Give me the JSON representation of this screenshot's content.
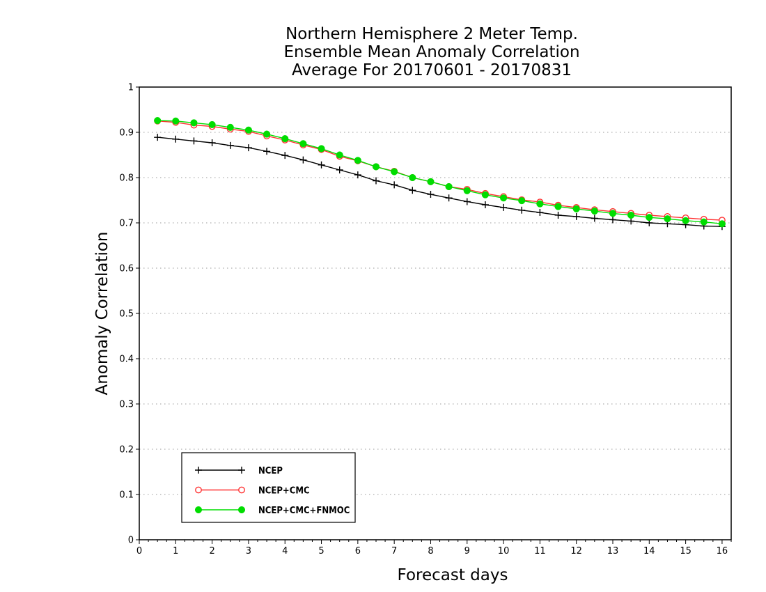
{
  "chart_data": {
    "type": "line",
    "title": [
      "Northern Hemisphere 2 Meter Temp.",
      "Ensemble Mean Anomaly Correlation",
      "Average For 20170601 - 20170831"
    ],
    "xlabel": "Forecast days",
    "ylabel": "Anomaly Correlation",
    "xlim": [
      0,
      16.25
    ],
    "ylim": [
      0,
      1
    ],
    "xticks": [
      "0",
      "1",
      "2",
      "3",
      "4",
      "5",
      "6",
      "7",
      "8",
      "9",
      "10",
      "11",
      "12",
      "13",
      "14",
      "15",
      "16"
    ],
    "yticks": [
      "0",
      "0.1",
      "0.2",
      "0.3",
      "0.4",
      "0.5",
      "0.6",
      "0.7",
      "0.8",
      "0.9",
      "1"
    ],
    "grid": "horizontal dotted",
    "legend_position": "bottom-left",
    "x": [
      0.5,
      1,
      1.5,
      2,
      2.5,
      3,
      3.5,
      4,
      4.5,
      5,
      5.5,
      6,
      6.5,
      7,
      7.5,
      8,
      8.5,
      9,
      9.5,
      10,
      10.5,
      11,
      11.5,
      12,
      12.5,
      13,
      13.5,
      14,
      14.5,
      15,
      15.5,
      16
    ],
    "series": [
      {
        "name": "NCEP",
        "color": "#000000",
        "marker": "plus",
        "values": [
          0.889,
          0.885,
          0.881,
          0.877,
          0.871,
          0.866,
          0.858,
          0.849,
          0.839,
          0.828,
          0.817,
          0.806,
          0.793,
          0.784,
          0.772,
          0.763,
          0.755,
          0.747,
          0.74,
          0.734,
          0.728,
          0.723,
          0.717,
          0.714,
          0.71,
          0.707,
          0.704,
          0.7,
          0.698,
          0.696,
          0.693,
          0.692
        ]
      },
      {
        "name": "NCEP+CMC",
        "color": "#ff3030",
        "marker": "open-circle",
        "values": [
          0.925,
          0.922,
          0.916,
          0.913,
          0.907,
          0.902,
          0.892,
          0.883,
          0.872,
          0.862,
          0.847,
          0.837,
          0.824,
          0.814,
          0.8,
          0.791,
          0.78,
          0.774,
          0.765,
          0.758,
          0.751,
          0.746,
          0.739,
          0.734,
          0.729,
          0.725,
          0.721,
          0.717,
          0.714,
          0.711,
          0.708,
          0.706
        ]
      },
      {
        "name": "NCEP+CMC+FNMOC",
        "color": "#00dd00",
        "marker": "filled-circle",
        "values": [
          0.926,
          0.925,
          0.921,
          0.917,
          0.911,
          0.905,
          0.896,
          0.886,
          0.875,
          0.864,
          0.85,
          0.838,
          0.824,
          0.813,
          0.8,
          0.791,
          0.78,
          0.771,
          0.762,
          0.755,
          0.749,
          0.742,
          0.736,
          0.731,
          0.726,
          0.721,
          0.717,
          0.712,
          0.709,
          0.705,
          0.702,
          0.698
        ]
      }
    ]
  }
}
